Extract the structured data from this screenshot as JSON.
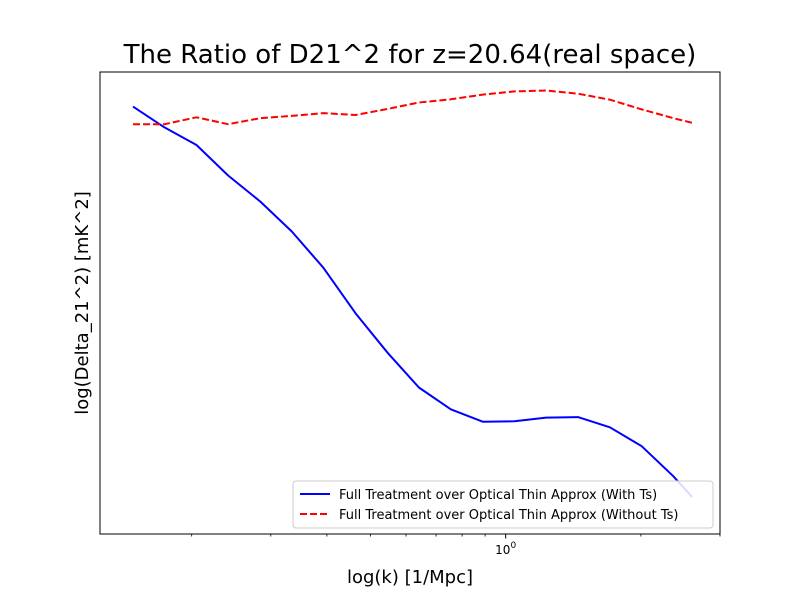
{
  "chart_data": {
    "type": "line",
    "title": "The Ratio of D21^2 for z=20.64(real space)",
    "xlabel": "log(k) [1/Mpc]",
    "ylabel": "log(Delta_21^2) [mK^2]",
    "xscale": "log",
    "xlim": [
      0.125,
      3.0
    ],
    "ylim": [
      0.0,
      1.0
    ],
    "x_major_ticks": [
      {
        "value": 1.0,
        "label": "10^0"
      }
    ],
    "x_minor_ticks": [
      0.2,
      0.3,
      0.4,
      0.5,
      0.6,
      0.7,
      0.8,
      0.9,
      2.0,
      3.0
    ],
    "y_ticks_shown": false,
    "grid": false,
    "legend_position": "lower-right",
    "series": [
      {
        "name": "Full Treatment over Optical Thin Approx (With Ts)",
        "color": "#0000ff",
        "linestyle": "solid",
        "x": [
          0.148,
          0.174,
          0.205,
          0.241,
          0.284,
          0.334,
          0.393,
          0.463,
          0.545,
          0.641,
          0.755,
          0.889,
          1.046,
          1.231,
          1.449,
          1.706,
          2.008,
          2.363,
          2.6
        ],
        "y": [
          0.925,
          0.88,
          0.842,
          0.776,
          0.72,
          0.655,
          0.576,
          0.478,
          0.393,
          0.317,
          0.27,
          0.243,
          0.244,
          0.252,
          0.253,
          0.231,
          0.19,
          0.125,
          0.08
        ]
      },
      {
        "name": "Full Treatment over Optical Thin Approx (Without Ts)",
        "color": "#ff0000",
        "linestyle": "dashed",
        "x": [
          0.148,
          0.174,
          0.205,
          0.241,
          0.284,
          0.334,
          0.393,
          0.463,
          0.545,
          0.641,
          0.755,
          0.889,
          1.046,
          1.231,
          1.449,
          1.706,
          2.008,
          2.363,
          2.6
        ],
        "y": [
          0.887,
          0.887,
          0.902,
          0.887,
          0.9,
          0.905,
          0.911,
          0.907,
          0.92,
          0.934,
          0.941,
          0.951,
          0.958,
          0.96,
          0.953,
          0.94,
          0.919,
          0.9,
          0.89
        ]
      }
    ]
  }
}
